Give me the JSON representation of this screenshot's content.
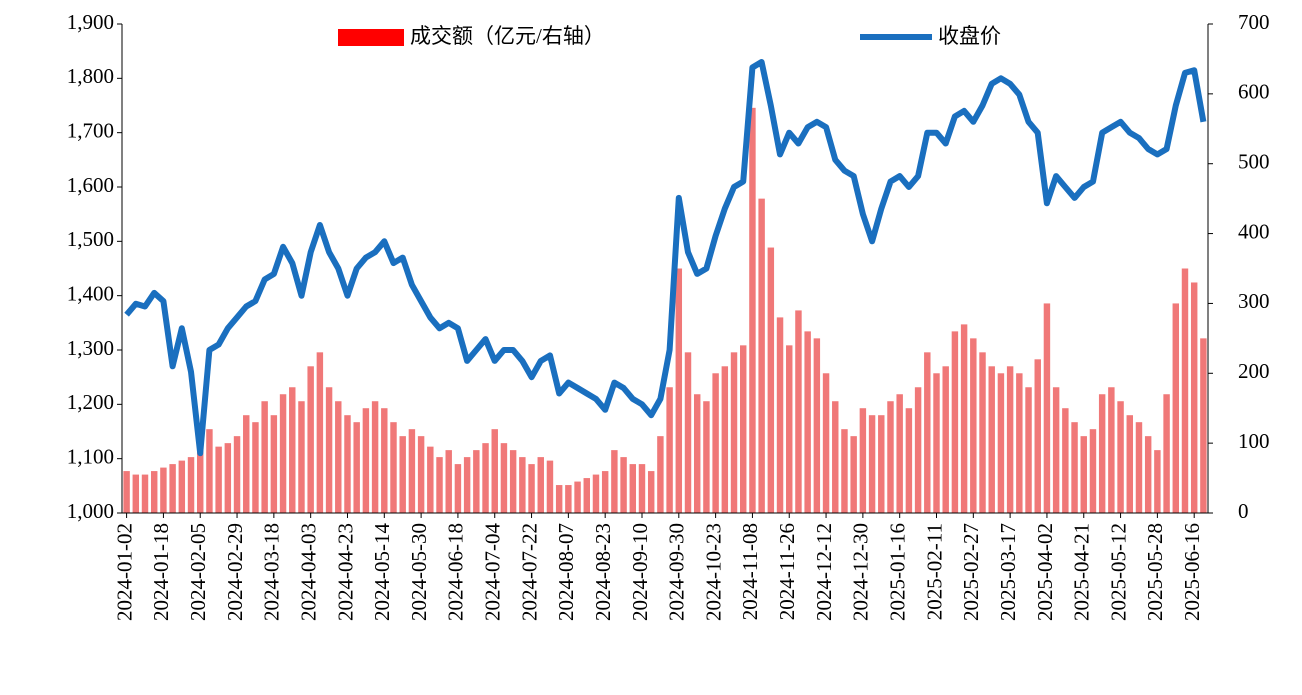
{
  "chart_data": {
    "type": "combo",
    "categories": [
      "2024-01-02",
      null,
      null,
      null,
      "2024-01-18",
      null,
      null,
      null,
      "2024-02-05",
      null,
      null,
      null,
      "2024-02-29",
      null,
      null,
      null,
      "2024-03-18",
      null,
      null,
      null,
      "2024-04-03",
      null,
      null,
      null,
      "2024-04-23",
      null,
      null,
      null,
      "2024-05-14",
      null,
      null,
      null,
      "2024-05-30",
      null,
      null,
      null,
      "2024-06-18",
      null,
      null,
      null,
      "2024-07-04",
      null,
      null,
      null,
      "2024-07-22",
      null,
      null,
      null,
      "2024-08-07",
      null,
      null,
      null,
      "2024-08-23",
      null,
      null,
      null,
      "2024-09-10",
      null,
      null,
      null,
      "2024-09-30",
      null,
      null,
      null,
      "2024-10-23",
      null,
      null,
      null,
      "2024-11-08",
      null,
      null,
      null,
      "2024-11-26",
      null,
      null,
      null,
      "2024-12-12",
      null,
      null,
      null,
      "2024-12-30",
      null,
      null,
      null,
      "2025-01-16",
      null,
      null,
      null,
      "2025-02-11",
      null,
      null,
      null,
      "2025-02-27",
      null,
      null,
      null,
      "2025-03-17",
      null,
      null,
      null,
      "2025-04-02",
      null,
      null,
      null,
      "2025-04-21",
      null,
      null,
      null,
      "2025-05-12",
      null,
      null,
      null,
      "2025-05-28",
      null,
      null,
      null,
      "2025-06-16",
      null
    ],
    "series": [
      {
        "name": "成交额（亿元/右轴）",
        "type": "bar",
        "axis": "y2",
        "color": "#f07878",
        "values": [
          60,
          55,
          55,
          60,
          65,
          70,
          75,
          80,
          110,
          120,
          95,
          100,
          110,
          140,
          130,
          160,
          140,
          170,
          180,
          160,
          210,
          230,
          180,
          160,
          140,
          130,
          150,
          160,
          150,
          130,
          110,
          120,
          110,
          95,
          80,
          90,
          70,
          80,
          90,
          100,
          120,
          100,
          90,
          80,
          70,
          80,
          75,
          40,
          40,
          45,
          50,
          55,
          60,
          90,
          80,
          70,
          70,
          60,
          110,
          180,
          350,
          230,
          170,
          160,
          200,
          210,
          230,
          240,
          580,
          450,
          380,
          280,
          240,
          290,
          260,
          250,
          200,
          160,
          120,
          110,
          150,
          140,
          140,
          160,
          170,
          150,
          180,
          230,
          200,
          210,
          260,
          270,
          250,
          230,
          210,
          200,
          210,
          200,
          180,
          220,
          300,
          180,
          150,
          130,
          110,
          120,
          170,
          180,
          160,
          140,
          130,
          110,
          90,
          170,
          300,
          350,
          330,
          250
        ]
      },
      {
        "name": "收盘价",
        "type": "line",
        "color": "#1a6fbf",
        "values": [
          1365,
          1385,
          1380,
          1405,
          1390,
          1270,
          1340,
          1260,
          1110,
          1300,
          1310,
          1340,
          1360,
          1380,
          1390,
          1430,
          1440,
          1490,
          1460,
          1400,
          1480,
          1530,
          1480,
          1450,
          1400,
          1450,
          1470,
          1480,
          1500,
          1460,
          1470,
          1420,
          1390,
          1360,
          1340,
          1350,
          1340,
          1280,
          1300,
          1320,
          1280,
          1300,
          1300,
          1280,
          1250,
          1280,
          1290,
          1220,
          1240,
          1230,
          1220,
          1210,
          1190,
          1240,
          1230,
          1210,
          1200,
          1180,
          1210,
          1300,
          1580,
          1480,
          1440,
          1450,
          1510,
          1560,
          1600,
          1610,
          1820,
          1830,
          1750,
          1660,
          1700,
          1680,
          1710,
          1720,
          1710,
          1650,
          1630,
          1620,
          1550,
          1500,
          1560,
          1610,
          1620,
          1600,
          1620,
          1700,
          1700,
          1680,
          1730,
          1740,
          1720,
          1750,
          1790,
          1800,
          1790,
          1770,
          1720,
          1700,
          1570,
          1620,
          1600,
          1580,
          1600,
          1610,
          1700,
          1710,
          1720,
          1700,
          1690,
          1670,
          1660,
          1670,
          1750,
          1810,
          1815,
          1720
        ]
      }
    ],
    "ylim": [
      1000,
      1900
    ],
    "yticks": [
      {
        "value": 1000,
        "label": "1,000"
      },
      {
        "value": 1100,
        "label": "1,100"
      },
      {
        "value": 1200,
        "label": "1,200"
      },
      {
        "value": 1300,
        "label": "1,300"
      },
      {
        "value": 1400,
        "label": "1,400"
      },
      {
        "value": 1500,
        "label": "1,500"
      },
      {
        "value": 1600,
        "label": "1,600"
      },
      {
        "value": 1700,
        "label": "1,700"
      },
      {
        "value": 1800,
        "label": "1,800"
      },
      {
        "value": 1900,
        "label": "1,900"
      }
    ],
    "y2lim": [
      0,
      700
    ],
    "y2ticks": [
      0,
      100,
      200,
      300,
      400,
      500,
      600,
      700
    ]
  }
}
